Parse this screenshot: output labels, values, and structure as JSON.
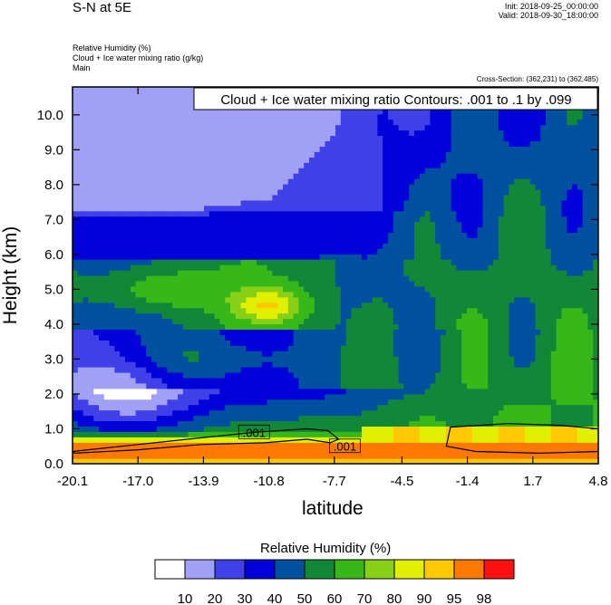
{
  "header": {
    "title": "S-N at 5E",
    "init": "Init: 2018-09-25_00:00:00",
    "valid": "Valid: 2018-09-30_18:00:00",
    "field1": "Relative Humidity   (%)",
    "field2": "Cloud + Ice water mixing ratio   (g/kg)",
    "field3": "Main",
    "cross_section": "Cross-Section: (362,231) to (362,485)"
  },
  "chart_data": {
    "type": "heatmap",
    "title": "Cloud + Ice water mixing ratio Contours: .001 to .1 by .099",
    "xlabel": "latitude",
    "ylabel": "Height (km)",
    "xlim": [
      -20.1,
      4.8
    ],
    "ylim": [
      0.0,
      10.8
    ],
    "x_ticks": [
      "-20.1",
      "-17.0",
      "-13.9",
      "-10.8",
      "-7.7",
      "-4.5",
      "-1.4",
      "1.7",
      "4.8"
    ],
    "y_ticks": [
      "0.0",
      "1.0",
      "2.0",
      "3.0",
      "4.0",
      "5.0",
      "6.0",
      "7.0",
      "8.0",
      "9.0",
      "10.0"
    ],
    "colorbar": {
      "title": "Relative Humidity  (%)",
      "levels": [
        "10",
        "20",
        "30",
        "40",
        "50",
        "60",
        "70",
        "80",
        "90",
        "95",
        "98"
      ],
      "colors": [
        "#ffffff",
        "#a0a0f5",
        "#4040e8",
        "#0000d8",
        "#0050a0",
        "#108838",
        "#38b818",
        "#88d018",
        "#e0f000",
        "#ffc800",
        "#ff7800",
        "#ff1010"
      ]
    },
    "contour_labels": [
      {
        "text": ".001",
        "x": -11.5,
        "y": 0.9
      },
      {
        "text": ".001",
        "x": -7.2,
        "y": 0.5
      }
    ]
  }
}
